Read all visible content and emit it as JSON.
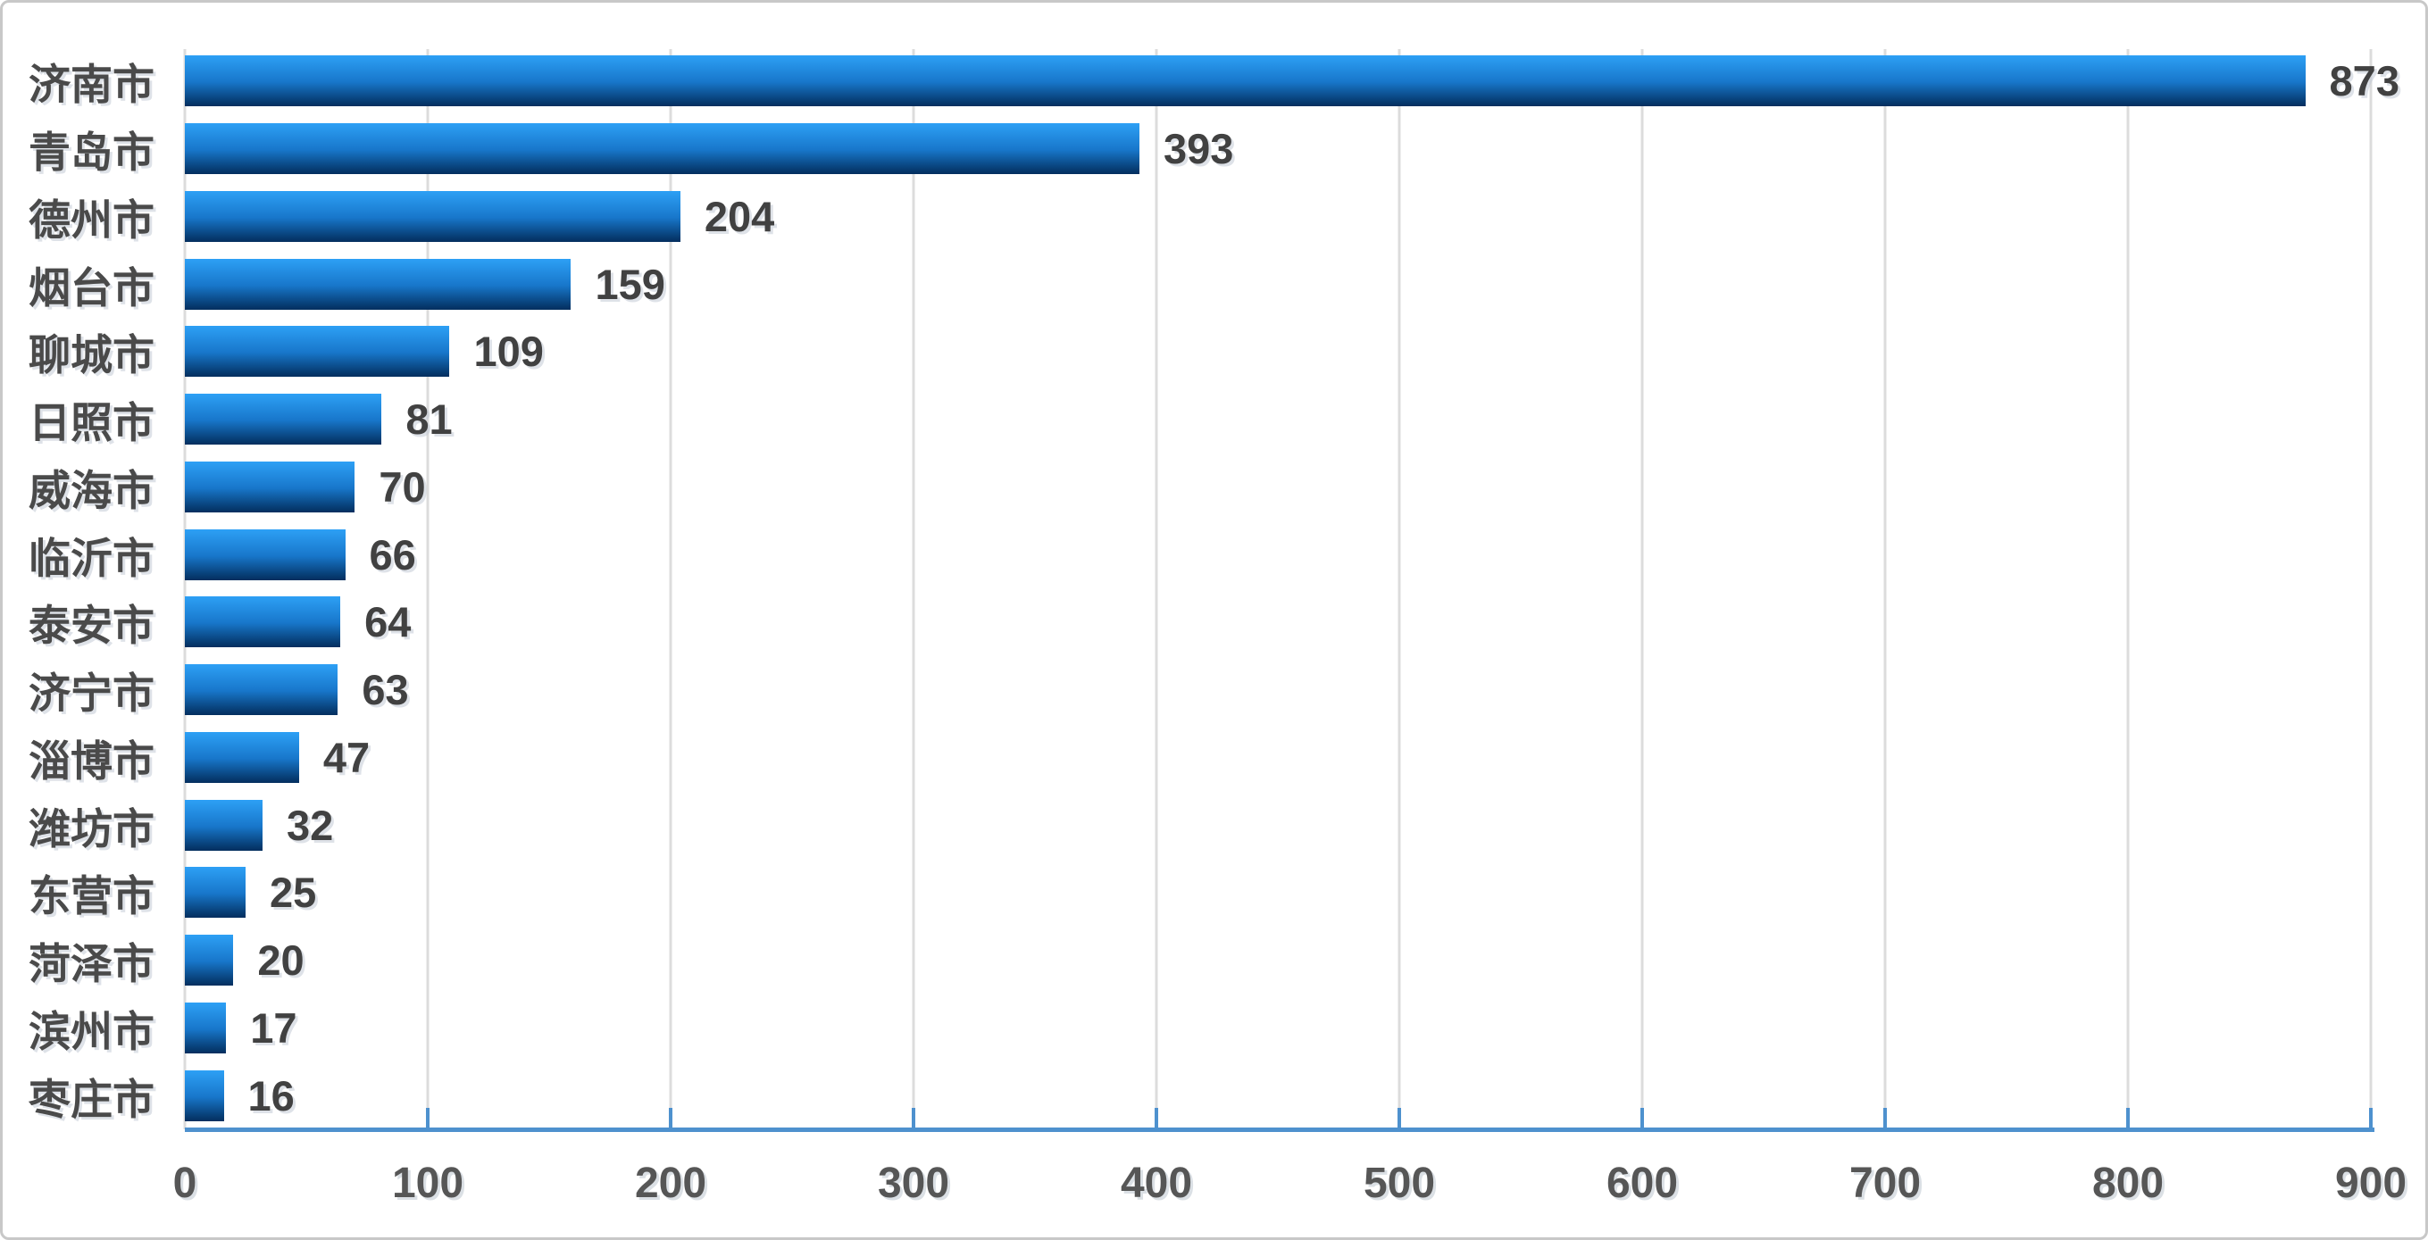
{
  "chart_data": {
    "type": "bar",
    "orientation": "horizontal",
    "title": "",
    "xlabel": "",
    "ylabel": "",
    "categories": [
      "济南市",
      "青岛市",
      "德州市",
      "烟台市",
      "聊城市",
      "日照市",
      "威海市",
      "临沂市",
      "泰安市",
      "济宁市",
      "淄博市",
      "潍坊市",
      "东营市",
      "菏泽市",
      "滨州市",
      "枣庄市"
    ],
    "values": [
      873,
      393,
      204,
      159,
      109,
      81,
      70,
      66,
      64,
      63,
      47,
      32,
      25,
      20,
      17,
      16
    ],
    "data_labels_visible": true,
    "x_ticks": [
      "0",
      "100",
      "200",
      "300",
      "400",
      "500",
      "600",
      "700",
      "800",
      "900"
    ],
    "xlim": [
      0,
      900
    ],
    "grid": "vertical-major",
    "legend": "none",
    "colors": {
      "bar_gradient_top": "#2da0f5",
      "bar_gradient_mid": "#1877cb",
      "bar_gradient_bottom": "#042e5e",
      "axis_line": "#4e91ce",
      "gridline": "#dcdcdc",
      "category_label": "#4a4a4a",
      "value_label": "#414141",
      "tick_label": "#565656",
      "figure_border": "#c8c8c8",
      "background": "#ffffff"
    }
  }
}
